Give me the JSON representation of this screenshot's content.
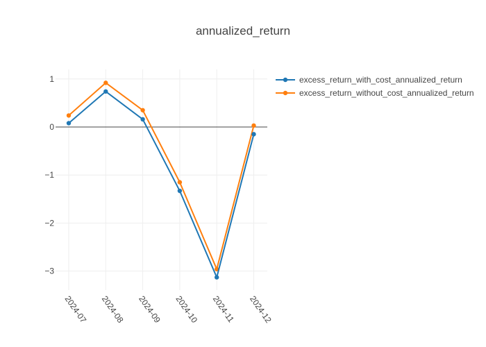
{
  "chart_data": {
    "type": "line",
    "title": "annualized_return",
    "xlabel": "",
    "ylabel": "",
    "categories": [
      "2024-07",
      "2024-08",
      "2024-09",
      "2024-10",
      "2024-11",
      "2024-12"
    ],
    "yticks": [
      1,
      0,
      -1,
      -2,
      -3
    ],
    "ylim": [
      -3.6,
      1.2
    ],
    "grid": true,
    "legend_position": "top-right",
    "series": [
      {
        "name": "excess_return_with_cost_annualized_return",
        "color": "#1f77b4",
        "values": [
          0.08,
          0.74,
          0.16,
          -1.33,
          -3.13,
          -0.15
        ]
      },
      {
        "name": "excess_return_without_cost_annualized_return",
        "color": "#ff7f0e",
        "values": [
          0.24,
          0.92,
          0.35,
          -1.15,
          -2.96,
          0.03
        ]
      }
    ]
  }
}
